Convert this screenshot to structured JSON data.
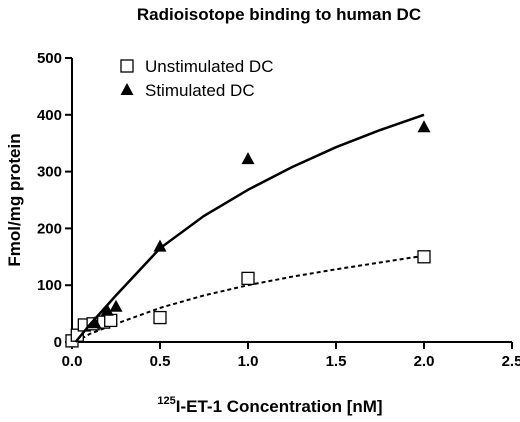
{
  "chart_data": {
    "type": "scatter",
    "title": "Radioisotope binding to human DC",
    "xlabel_sup": "125",
    "xlabel_main": "I-ET-1 Concentration [nM]",
    "ylabel": "Fmol/mg protein",
    "xlim": [
      0,
      2.5
    ],
    "ylim": [
      0,
      500
    ],
    "xticks": [
      "0.0",
      "0.5",
      "1.0",
      "1.5",
      "2.0",
      "2.5"
    ],
    "yticks": [
      "0",
      "100",
      "200",
      "300",
      "400",
      "500"
    ],
    "grid": false,
    "legend_position": "top-left",
    "series": [
      {
        "name": "Unstimulated DC",
        "marker": "open-square",
        "line": "dashed",
        "color": "#000000",
        "points": [
          [
            0.0,
            2
          ],
          [
            0.03,
            12
          ],
          [
            0.07,
            30
          ],
          [
            0.12,
            32
          ],
          [
            0.18,
            35
          ],
          [
            0.22,
            38
          ],
          [
            0.5,
            43
          ],
          [
            1.0,
            112
          ],
          [
            2.0,
            150
          ]
        ],
        "fit": [
          [
            0.02,
            0
          ],
          [
            0.1,
            14
          ],
          [
            0.25,
            32
          ],
          [
            0.5,
            60
          ],
          [
            0.75,
            82
          ],
          [
            1.0,
            100
          ],
          [
            1.25,
            115
          ],
          [
            1.5,
            128
          ],
          [
            1.75,
            140
          ],
          [
            2.0,
            152
          ]
        ]
      },
      {
        "name": "Stimulated DC",
        "marker": "filled-triangle",
        "line": "solid",
        "color": "#000000",
        "points": [
          [
            0.13,
            33
          ],
          [
            0.2,
            55
          ],
          [
            0.25,
            62
          ],
          [
            0.5,
            168
          ],
          [
            1.0,
            322
          ],
          [
            2.0,
            378
          ]
        ],
        "fit": [
          [
            0.02,
            0
          ],
          [
            0.1,
            30
          ],
          [
            0.25,
            82
          ],
          [
            0.5,
            165
          ],
          [
            0.75,
            222
          ],
          [
            1.0,
            268
          ],
          [
            1.25,
            308
          ],
          [
            1.5,
            343
          ],
          [
            1.75,
            373
          ],
          [
            2.0,
            400
          ]
        ]
      }
    ]
  }
}
